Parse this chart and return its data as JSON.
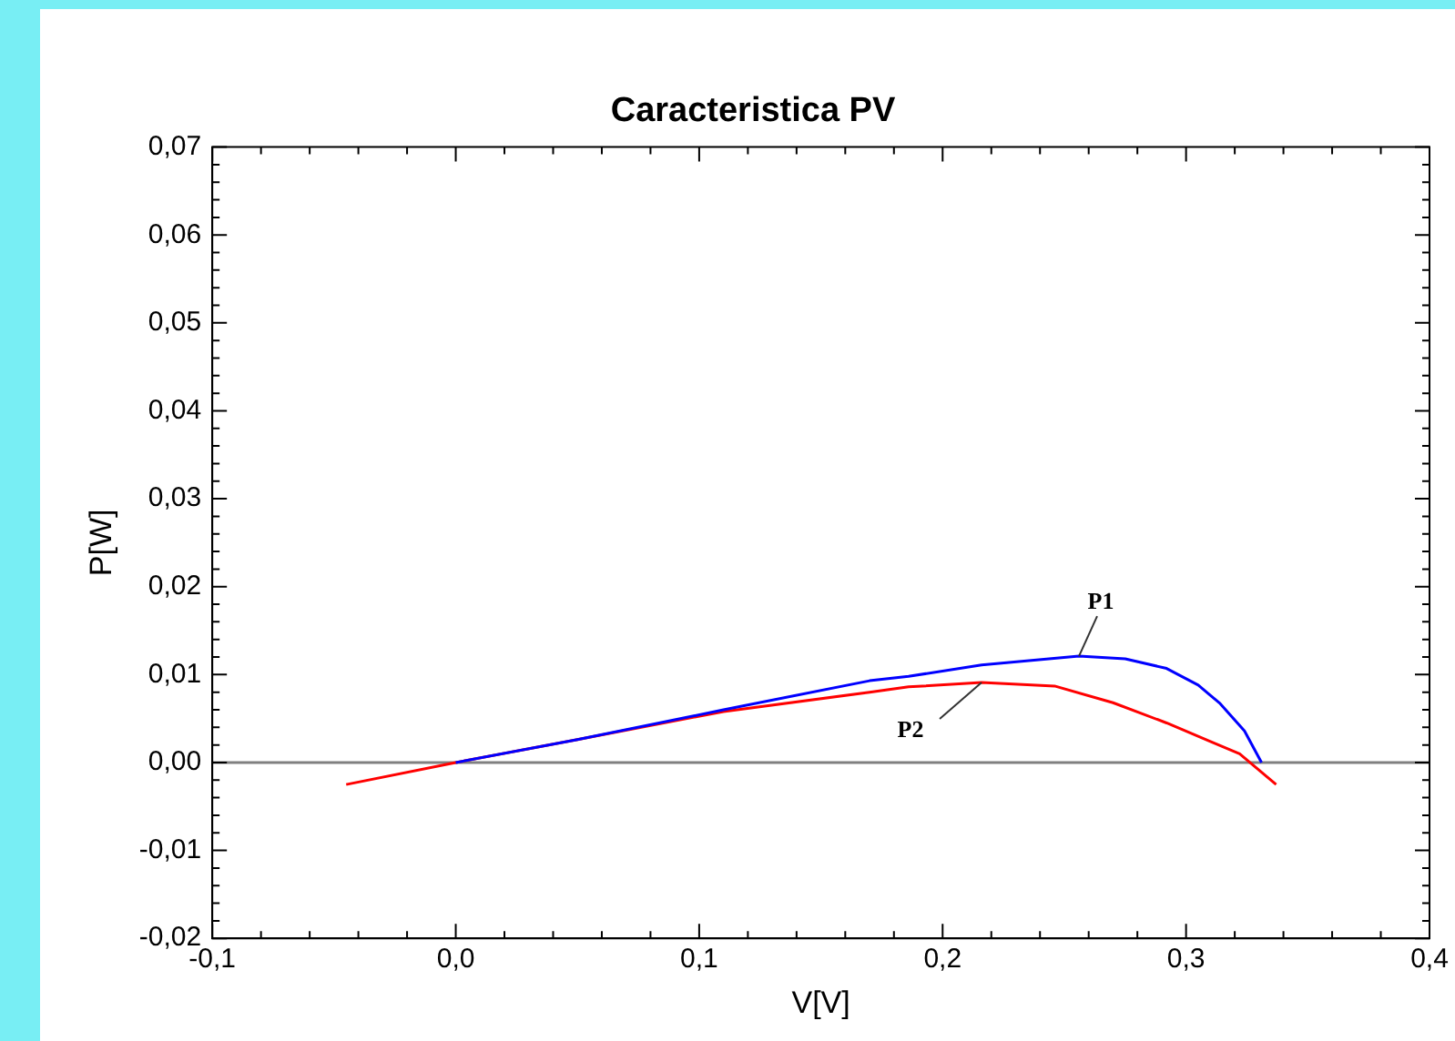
{
  "chart_data": {
    "type": "line",
    "title": "Caracteristica PV",
    "xlabel": "V[V]",
    "ylabel": "P[W]",
    "series": [
      {
        "name": "P1",
        "color": "#0000ff",
        "x": [
          0,
          0.05,
          0.11,
          0.17,
          0.186,
          0.216,
          0.256,
          0.275,
          0.292,
          0.305,
          0.314,
          0.324,
          0.331
        ],
        "values": [
          0,
          0.0026,
          0.006,
          0.0093,
          0.0098,
          0.0111,
          0.0121,
          0.0118,
          0.0107,
          0.0088,
          0.0067,
          0.0036,
          0
        ]
      },
      {
        "name": "P2",
        "color": "#ff0000",
        "x": [
          -0.045,
          0,
          0.05,
          0.11,
          0.17,
          0.186,
          0.216,
          0.246,
          0.27,
          0.292,
          0.31,
          0.322,
          0.337
        ],
        "values": [
          -0.0025,
          0,
          0.0026,
          0.0058,
          0.008,
          0.0086,
          0.0091,
          0.0087,
          0.0068,
          0.0045,
          0.0024,
          0.001,
          -0.0025
        ]
      }
    ],
    "ref_lines": [
      {
        "axis": "y",
        "value": 0,
        "color": "#808080"
      }
    ],
    "xlim": [
      -0.1,
      0.4
    ],
    "ylim": [
      -0.02,
      0.07
    ],
    "xticks": [
      {
        "value": -0.1,
        "label": "-0,1"
      },
      {
        "value": 0,
        "label": "0,0"
      },
      {
        "value": 0.1,
        "label": "0,1"
      },
      {
        "value": 0.2,
        "label": "0,2"
      },
      {
        "value": 0.3,
        "label": "0,3"
      },
      {
        "value": 0.4,
        "label": "0,4"
      }
    ],
    "yticks": [
      {
        "value": -0.02,
        "label": "-0,02"
      },
      {
        "value": -0.01,
        "label": "-0,01"
      },
      {
        "value": 0,
        "label": "0,00"
      },
      {
        "value": 0.01,
        "label": "0,01"
      },
      {
        "value": 0.02,
        "label": "0,02"
      },
      {
        "value": 0.03,
        "label": "0,03"
      },
      {
        "value": 0.04,
        "label": "0,04"
      },
      {
        "value": 0.05,
        "label": "0,05"
      },
      {
        "value": 0.06,
        "label": "0,06"
      },
      {
        "value": 0.07,
        "label": "0,07"
      }
    ],
    "grid": false,
    "legend": false,
    "marker": "none",
    "line_style": "solid"
  }
}
